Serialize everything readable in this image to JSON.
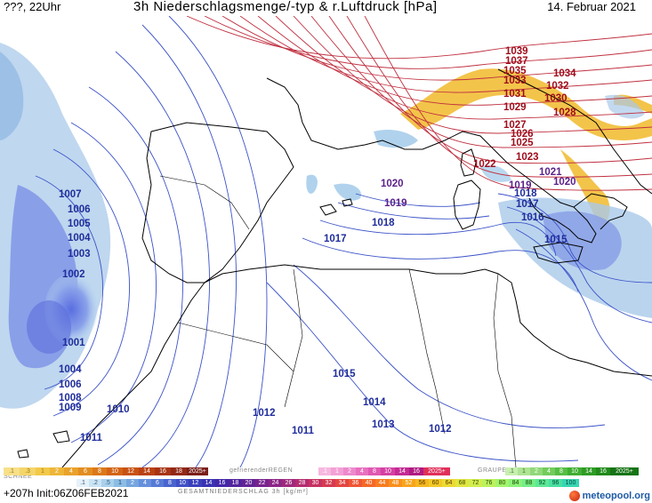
{
  "header": {
    "time_label": "???, 22Uhr",
    "title": "3h Niederschlagsmenge/-typ & r.Luftdruck [hPa]",
    "date": "14. Februar 2021"
  },
  "map": {
    "colors": {
      "isobar_blue": "#3a4fc4",
      "isobar_red": "#b81e2c",
      "coast": "#000000",
      "precip_blue": "#6f86e0",
      "precip_yellow": "#f4c64a",
      "precip_lightblue": "#9cc7e8"
    },
    "pressure_labels_blue": [
      "1007",
      "1006",
      "1005",
      "1004",
      "1003",
      "1002",
      "1001",
      "1004",
      "1006",
      "1008",
      "1009",
      "1010",
      "1011",
      "1012",
      "1011",
      "1013",
      "1012",
      "1014",
      "1015",
      "1017",
      "1018",
      "1019",
      "1020",
      "1016",
      "1017",
      "1018",
      "1019",
      "1015"
    ],
    "pressure_labels_red": [
      "1039",
      "1037",
      "1035",
      "1033",
      "1031",
      "1029",
      "1027",
      "1026",
      "1025",
      "1023",
      "1022",
      "1034",
      "1032",
      "1030",
      "1028",
      "1021",
      "1020"
    ]
  },
  "legend": {
    "snow_label": "SCHNEE",
    "freezing_rain_label": "gefrierenderREGEN",
    "graupel_label": "GRAUPEL",
    "total_label": "GESAMTNIEDERSCHLAG 3h [kg/m²]",
    "snow_scale": [
      ".1",
      ".3",
      "1",
      "2",
      "4",
      "6",
      "8",
      "10",
      "12",
      "14",
      "16",
      "18",
      "2025+"
    ],
    "fzra_scale": [
      ".1",
      "1",
      "2",
      "4",
      "8",
      "10",
      "14",
      "16",
      "2025+"
    ],
    "graupel_scale": [
      ".1",
      "1",
      "2",
      "4",
      "8",
      "10",
      "14",
      "16",
      "2025+"
    ],
    "total_scale": [
      ".1",
      ".2",
      ".5",
      "1",
      "2",
      "4",
      "6",
      "8",
      "10",
      "12",
      "14",
      "16",
      "18",
      "20",
      "22",
      "24",
      "26",
      "28",
      "30",
      "32",
      "34",
      "36",
      "40",
      "44",
      "48",
      "52",
      "56",
      "60",
      "64",
      "68",
      "72",
      "76",
      "80",
      "84",
      "88",
      "92",
      "96",
      "100"
    ]
  },
  "footer": {
    "run_info": "+207h  Init:06Z06FEB2021",
    "brand": "meteopool.org"
  }
}
